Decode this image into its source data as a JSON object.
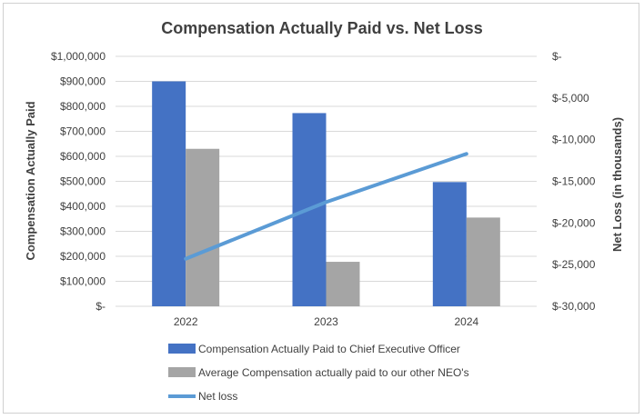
{
  "chart_data": {
    "type": "bar",
    "title": "Compensation Actually Paid vs. Net Loss",
    "categories": [
      "2022",
      "2023",
      "2024"
    ],
    "ylabel": "Compensation Actually Paid",
    "y2label": "Net Loss (in thousands)",
    "ylim": [
      0,
      1000000
    ],
    "y2lim": [
      -30000,
      0
    ],
    "yticks": [
      "$-",
      "$100,000",
      "$200,000",
      "$300,000",
      "$400,000",
      "$500,000",
      "$600,000",
      "$700,000",
      "$800,000",
      "$900,000",
      "$1,000,000"
    ],
    "y2ticks": [
      "$-30,000",
      "$-25,000",
      "$-20,000",
      "$-15,000",
      "$-10,000",
      "$-5,000",
      "$-"
    ],
    "grid": true,
    "legend_position": "bottom",
    "series": [
      {
        "name": "Compensation Actually Paid to Chief Executive Officer",
        "type": "bar",
        "axis": "left",
        "color": "#4472C4",
        "values": [
          900000,
          773000,
          497000
        ]
      },
      {
        "name": "Average Compensation actually paid to our other NEO's",
        "type": "bar",
        "axis": "left",
        "color": "#A5A5A5",
        "values": [
          630000,
          178000,
          355000
        ]
      },
      {
        "name": "Net loss",
        "type": "line",
        "axis": "right",
        "color": "#5B9BD5",
        "values": [
          -24300,
          -17500,
          -11700
        ]
      }
    ]
  }
}
